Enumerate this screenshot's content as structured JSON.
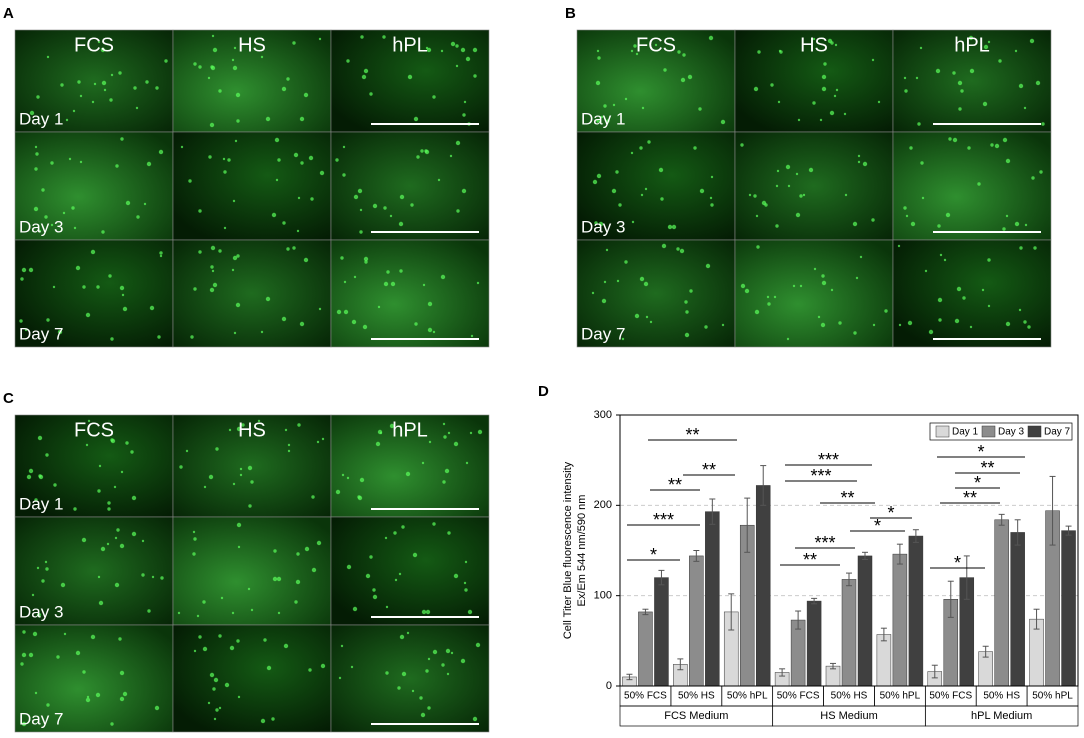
{
  "panels": [
    {
      "label": "A",
      "columns": [
        "FCS",
        "HS",
        "hPL"
      ],
      "rows": [
        "Day 1",
        "Day 3",
        "Day 7"
      ]
    },
    {
      "label": "B",
      "columns": [
        "FCS",
        "HS",
        "hPL"
      ],
      "rows": [
        "Day 1",
        "Day 3",
        "Day 7"
      ]
    },
    {
      "label": "C",
      "columns": [
        "FCS",
        "HS",
        "hPL"
      ],
      "rows": [
        "Day 1",
        "Day 3",
        "Day 7"
      ]
    }
  ],
  "chart_data": {
    "type": "bar",
    "panel_label": "D",
    "ylabel": "Cell Titer Blue fluorescence intensity",
    "ylabel2": "Ex/Em 544 nm/590 nm",
    "categories": [
      "50% FCS",
      "50% HS",
      "50% hPL",
      "50% FCS",
      "50% HS",
      "50% hPL",
      "50% FCS",
      "50% HS",
      "50% hPL"
    ],
    "groups": [
      "FCS Medium",
      "HS Medium",
      "hPL Medium"
    ],
    "series": [
      {
        "name": "Day 1",
        "color": "#d9d9d9",
        "values": [
          10,
          24,
          82,
          15,
          22,
          57,
          16,
          38,
          74
        ],
        "errors": [
          3,
          6,
          20,
          4,
          3,
          7,
          7,
          6,
          11
        ]
      },
      {
        "name": "Day 3",
        "color": "#8c8c8c",
        "values": [
          82,
          144,
          178,
          73,
          118,
          146,
          96,
          184,
          194
        ],
        "errors": [
          3,
          6,
          30,
          10,
          7,
          11,
          20,
          6,
          38
        ]
      },
      {
        "name": "Day 7",
        "color": "#404040",
        "values": [
          120,
          193,
          222,
          94,
          144,
          166,
          120,
          170,
          172
        ],
        "errors": [
          8,
          14,
          22,
          3,
          4,
          7,
          24,
          14,
          5
        ]
      }
    ],
    "ylim": [
      0,
      300
    ],
    "yticks": [
      0,
      100,
      200,
      300
    ],
    "grid": true,
    "legend": "top-right",
    "annotations": [
      "**",
      "**",
      "**",
      "***",
      "*",
      "***",
      "***",
      "**",
      "*",
      "*",
      "***",
      "**",
      "*",
      "**",
      "*",
      "**",
      "*"
    ]
  }
}
